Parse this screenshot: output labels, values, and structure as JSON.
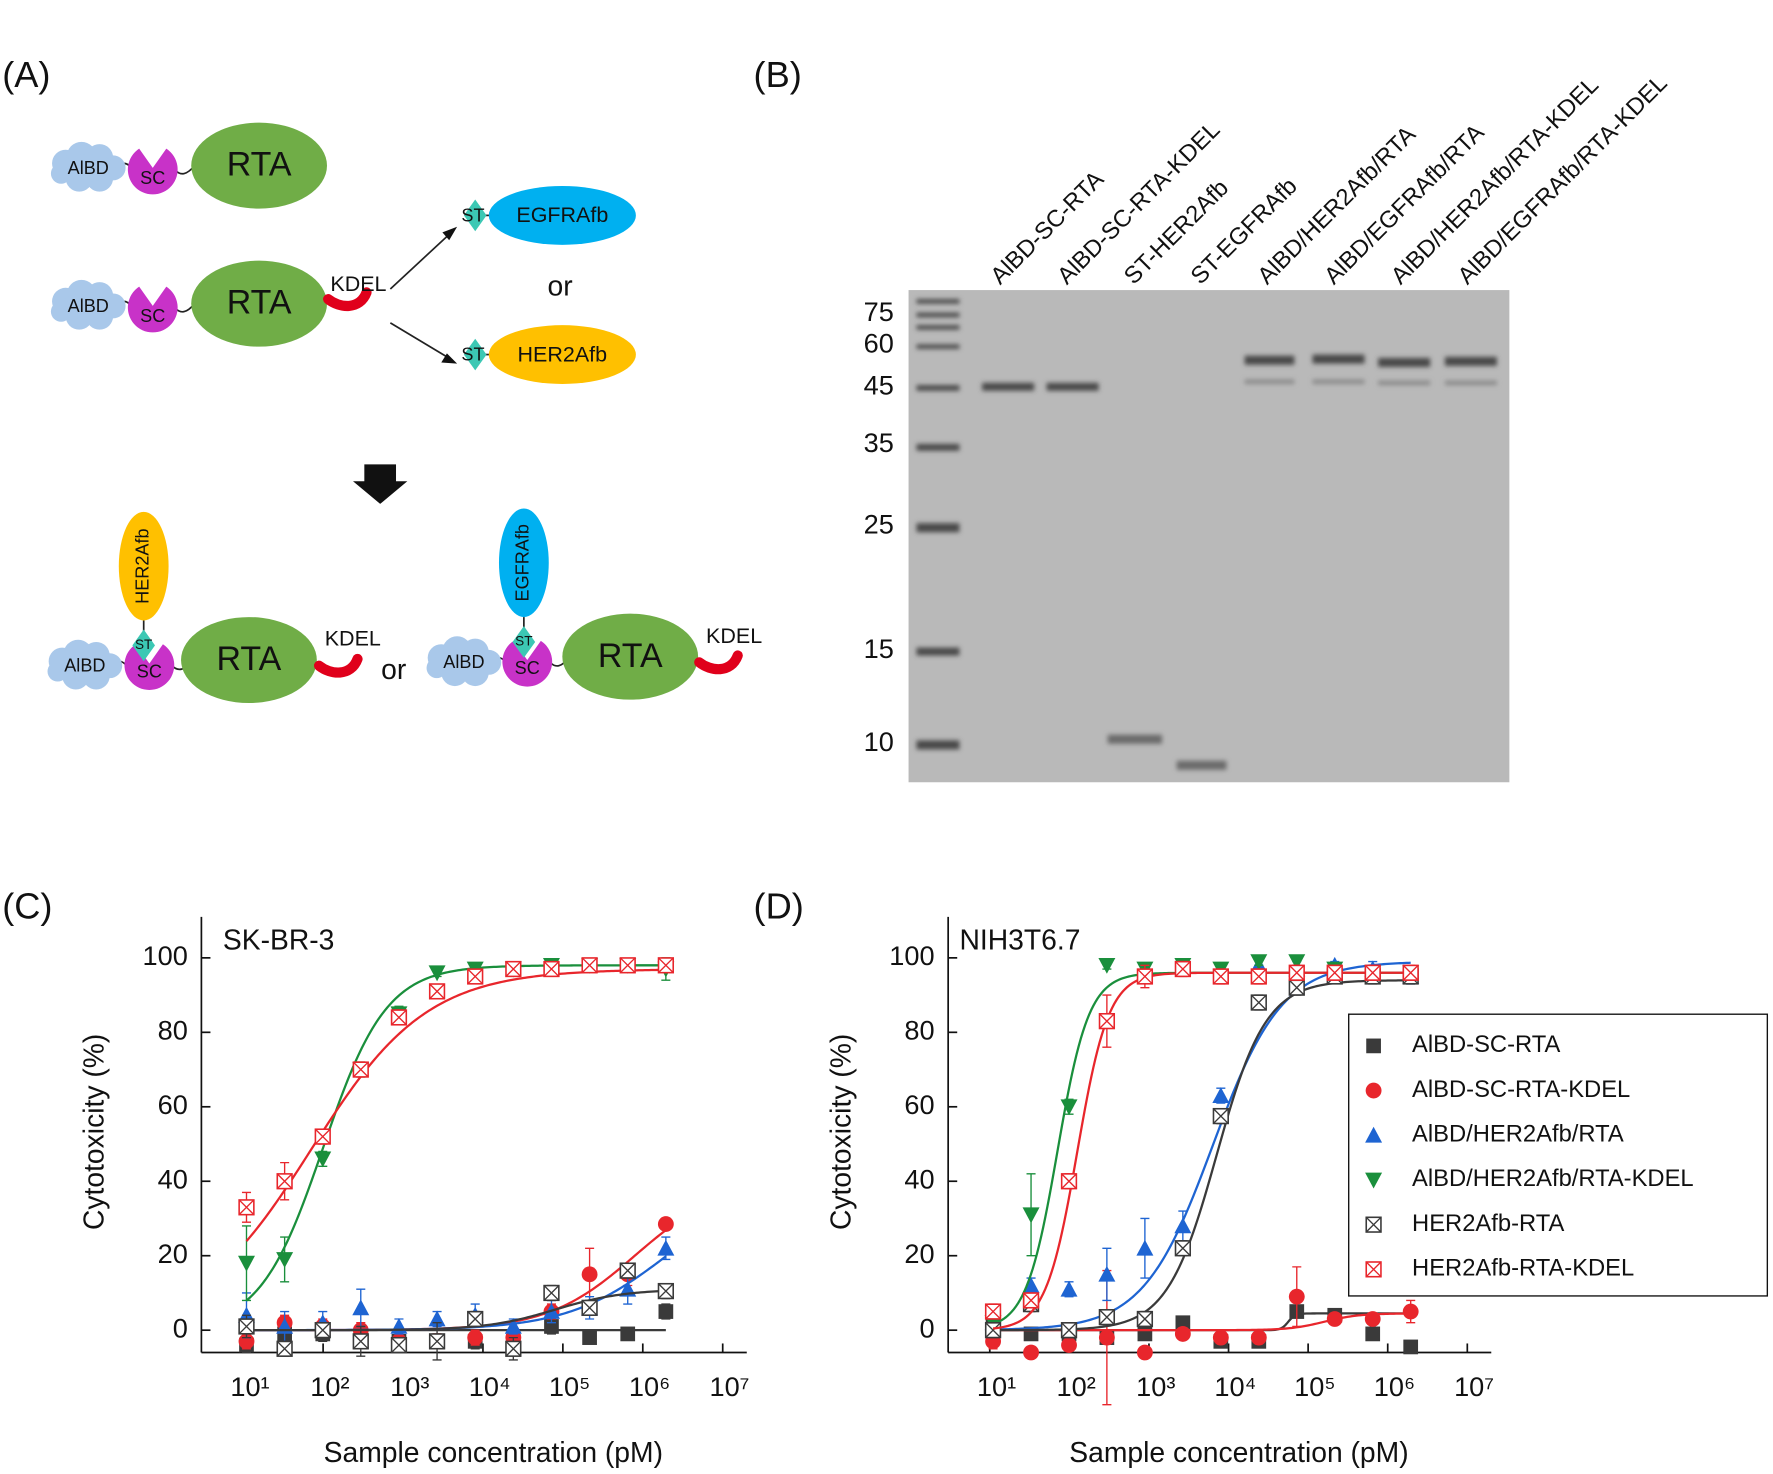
{
  "panel_a": {
    "label": "(A)",
    "albd": "AlBD",
    "sc": "SC",
    "rta": "RTA",
    "kdel": "KDEL",
    "st": "ST",
    "egfr_afb": "EGFRAfb",
    "her2_afb": "HER2Afb",
    "or": "or"
  },
  "panel_b": {
    "label": "(B)",
    "lanes": [
      "AlBD-SC-RTA",
      "AlBD-SC-RTA-KDEL",
      "ST-HER2Afb",
      "ST-EGFRAfb",
      "AlBD/HER2Afb/RTA",
      "AlBD/EGFRAfb/RTA",
      "AlBD/HER2Afb/RTA-KDEL",
      "AlBD/EGFRAfb/RTA-KDEL"
    ],
    "markers": [
      75,
      60,
      45,
      35,
      25,
      15,
      10
    ]
  },
  "chart_data": [
    {
      "type": "scatter",
      "panel": "(C)",
      "annotation": "SK-BR-3",
      "xlabel": "Sample concentration (pM)",
      "ylabel": "Cytotoxicity (%)",
      "xscale": "log",
      "xlim": [
        3,
        20000000
      ],
      "ylim": [
        -6,
        111
      ],
      "xticks": [
        {
          "value": 10,
          "label": "10¹"
        },
        {
          "value": 100,
          "label": "10²"
        },
        {
          "value": 1000,
          "label": "10³"
        },
        {
          "value": 10000,
          "label": "10⁴"
        },
        {
          "value": 100000,
          "label": "10⁵"
        },
        {
          "value": 1000000,
          "label": "10⁶"
        },
        {
          "value": 10000000,
          "label": "10⁷"
        }
      ],
      "yticks": [
        0,
        20,
        40,
        60,
        80,
        100
      ],
      "x": [
        11,
        33,
        99,
        296,
        889,
        2667,
        8000,
        24000,
        72000,
        216000,
        648000,
        1944000
      ],
      "series": [
        {
          "color": "#3a3a3a",
          "marker": "square",
          "values": [
            -4,
            -1,
            -1,
            -2,
            -3,
            -3,
            -3,
            -3,
            1,
            -2,
            -1,
            5
          ],
          "errors": [
            2,
            2,
            2,
            2,
            2,
            2,
            2,
            2,
            2,
            1,
            1,
            2
          ],
          "fit": {
            "bottom": 0,
            "top": 0,
            "log_ec50": 4,
            "hill": 1
          }
        },
        {
          "color": "#e8262c",
          "marker": "circle",
          "values": [
            -3,
            2,
            1,
            0,
            -3,
            -3,
            -2,
            -2,
            5,
            15,
            15,
            28.5
          ],
          "errors": [
            2,
            2,
            2,
            2,
            2,
            2,
            2,
            2,
            2,
            7,
            3,
            1
          ],
          "fit": {
            "bottom": 0,
            "top": 40,
            "log_ec50": 5.9,
            "hill": 0.8
          }
        },
        {
          "color": "#1e64d2",
          "marker": "triangle-up",
          "values": [
            4,
            1,
            2,
            6,
            1,
            3,
            4,
            1,
            5,
            6,
            11,
            22
          ],
          "errors": [
            6,
            4,
            3,
            5,
            2,
            2,
            3,
            2,
            3,
            3,
            4,
            3
          ],
          "fit": {
            "bottom": 0,
            "top": 40,
            "log_ec50": 6.3,
            "hill": 0.7
          }
        },
        {
          "color": "#1a8f3c",
          "marker": "triangle-down",
          "values": [
            18,
            19,
            46,
            70,
            85,
            96,
            97,
            97,
            98,
            98,
            98,
            97
          ],
          "errors": [
            10,
            6,
            2,
            2,
            2,
            1,
            1,
            1,
            1,
            1,
            1,
            3
          ],
          "fit": {
            "bottom": 0,
            "top": 98,
            "log_ec50": 2,
            "hill": 1.1
          }
        },
        {
          "color": "#3a3a3a",
          "marker": "crossed-square",
          "values": [
            1,
            -5,
            0,
            -3,
            -4,
            -3,
            3,
            -5,
            10,
            6,
            16,
            10.5
          ],
          "errors": [
            3,
            2,
            2,
            4,
            2,
            5,
            2,
            3,
            2,
            2,
            2,
            2
          ],
          "fit": {
            "bottom": 0,
            "top": 11,
            "log_ec50": 4.9,
            "hill": 1
          }
        },
        {
          "color": "#e8262c",
          "marker": "crossed-square",
          "values": [
            33,
            40,
            52,
            70,
            84,
            91,
            95,
            97,
            97,
            98,
            98,
            98
          ],
          "errors": [
            4,
            5,
            2,
            2,
            2,
            1,
            1,
            1,
            1,
            1,
            1,
            1
          ],
          "fit": {
            "bottom": 0,
            "top": 97,
            "log_ec50": 1.85,
            "hill": 0.6
          }
        }
      ]
    },
    {
      "type": "scatter",
      "panel": "(D)",
      "annotation": "NIH3T6.7",
      "xlabel": "Sample concentration (pM)",
      "ylabel": "Cytotoxicity (%)",
      "xscale": "log",
      "xlim": [
        3,
        20000000
      ],
      "ylim": [
        -6,
        111
      ],
      "xticks": [
        {
          "value": 10,
          "label": "10¹"
        },
        {
          "value": 100,
          "label": "10²"
        },
        {
          "value": 1000,
          "label": "10³"
        },
        {
          "value": 10000,
          "label": "10⁴"
        },
        {
          "value": 100000,
          "label": "10⁵"
        },
        {
          "value": 1000000,
          "label": "10⁶"
        },
        {
          "value": 10000000,
          "label": "10⁷"
        }
      ],
      "yticks": [
        0,
        20,
        40,
        60,
        80,
        100
      ],
      "legend": "right",
      "x": [
        11,
        33,
        99,
        296,
        889,
        2667,
        8000,
        24000,
        72000,
        216000,
        648000,
        1944000
      ],
      "series": [
        {
          "name": "AlBD-SC-RTA",
          "color": "#3a3a3a",
          "marker": "square",
          "values": [
            1,
            -1,
            -1,
            -2,
            -1,
            2,
            -3,
            -3,
            5,
            4,
            -1,
            -4.5
          ],
          "errors": [
            1,
            1,
            1,
            1,
            1,
            1,
            1,
            1,
            1,
            1,
            1,
            1
          ],
          "fit": {
            "bottom": 0,
            "top": 4.5,
            "log_ec50": 4.75,
            "hill": 10
          }
        },
        {
          "name": "AlBD-SC-RTA-KDEL",
          "color": "#e8262c",
          "marker": "circle",
          "values": [
            -3,
            -6,
            -4,
            -2,
            -6,
            -1,
            -2,
            -2,
            9,
            3,
            3,
            5
          ],
          "errors": [
            2,
            1,
            1,
            18,
            1,
            1,
            1,
            1,
            8,
            1,
            1,
            3
          ],
          "fit": {
            "bottom": 0,
            "top": 4.5,
            "log_ec50": 5.2,
            "hill": 2
          }
        },
        {
          "name": "AlBD/HER2Afb/RTA",
          "color": "#1e64d2",
          "marker": "triangle-up",
          "values": [
            2,
            12,
            11,
            15,
            22,
            28,
            63,
            98,
            97,
            98,
            97,
            95
          ],
          "errors": [
            2,
            2,
            2,
            7,
            8,
            4,
            2,
            2,
            2,
            1,
            2,
            2
          ],
          "fit": {
            "bottom": 0,
            "top": 99,
            "log_ec50": 3.8,
            "hill": 1
          }
        },
        {
          "name": "AlBD/HER2Afb/RTA-KDEL",
          "color": "#1a8f3c",
          "marker": "triangle-down",
          "values": [
            2,
            31,
            60,
            98,
            97,
            98,
            97,
            99,
            99,
            97,
            96,
            96
          ],
          "errors": [
            2,
            11,
            2,
            1,
            1,
            1,
            1,
            1,
            1,
            1,
            1,
            1
          ],
          "fit": {
            "bottom": 0,
            "top": 96,
            "log_ec50": 1.85,
            "hill": 2.2
          }
        },
        {
          "name": "HER2Afb-RTA",
          "color": "#3a3a3a",
          "marker": "crossed-square",
          "values": [
            0,
            7,
            0,
            3.5,
            3,
            22,
            57.5,
            88,
            92,
            95,
            95,
            95
          ],
          "errors": [
            2,
            2,
            2,
            2,
            2,
            2,
            2,
            2,
            2,
            1,
            2,
            2
          ],
          "fit": {
            "bottom": 0,
            "top": 94,
            "log_ec50": 3.85,
            "hill": 1.4
          }
        },
        {
          "name": "HER2Afb-RTA-KDEL",
          "color": "#e8262c",
          "marker": "crossed-square",
          "values": [
            5,
            8,
            40,
            83,
            95,
            97,
            95,
            95,
            96,
            96,
            96,
            96
          ],
          "errors": [
            2,
            2,
            2,
            7,
            3,
            2,
            2,
            2,
            2,
            2,
            2,
            2
          ],
          "fit": {
            "bottom": 0,
            "top": 96,
            "log_ec50": 2.1,
            "hill": 2.2
          }
        }
      ]
    }
  ]
}
